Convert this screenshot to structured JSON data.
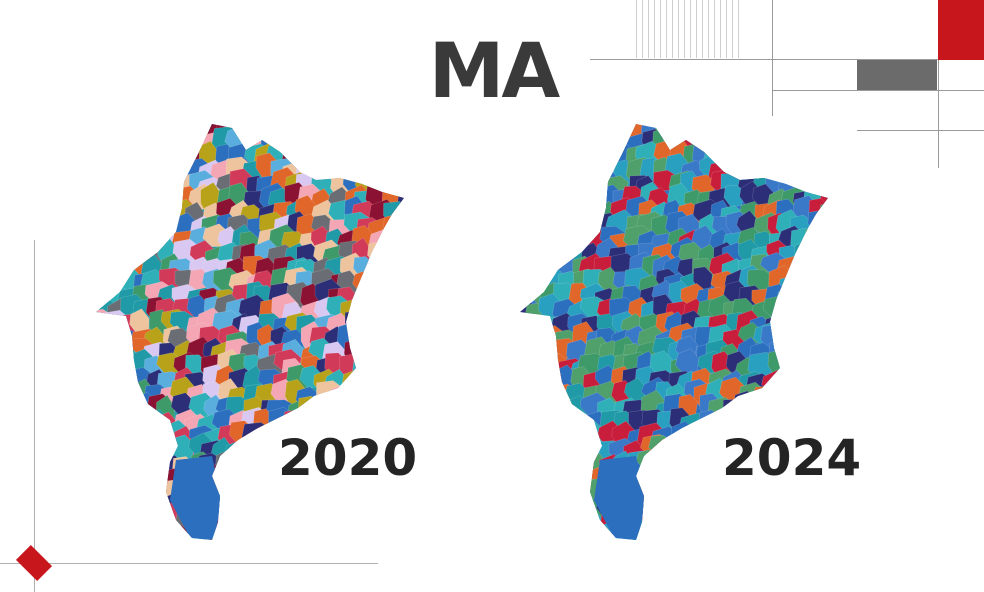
{
  "title": "MA",
  "maps": [
    {
      "year": "2020",
      "palette": [
        "#2c2f78",
        "#1f9aa6",
        "#2d6fbf",
        "#f4a6b4",
        "#8b1232",
        "#d9c8f2",
        "#b8a21a",
        "#3f9a6a",
        "#eec49e",
        "#d23a5a",
        "#e0662a",
        "#2fb0b8",
        "#6a6e74",
        "#5aaedd"
      ]
    },
    {
      "year": "2024",
      "palette": [
        "#1f9aa6",
        "#2d6fbf",
        "#3f9a6a",
        "#2c2f78",
        "#2fb0b8",
        "#e0662a",
        "#4fa06a",
        "#2aa0c0",
        "#c81e3c",
        "#3a78c8"
      ]
    }
  ],
  "colors": {
    "accent": "#c8161d",
    "gray_block": "#6b6b6b",
    "line": "#9a9a9a"
  }
}
